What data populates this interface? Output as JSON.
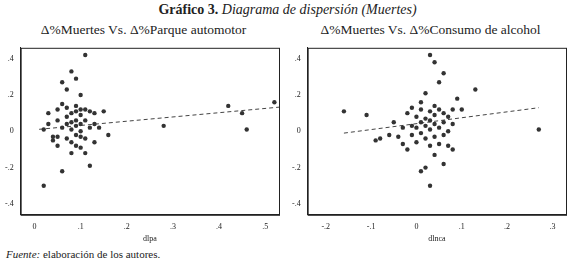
{
  "figure": {
    "label": "Gráfico 3.",
    "title": "Diagrama de dispersión (Muertes)"
  },
  "source": {
    "label": "Fuente:",
    "text": "elaboración de los autores."
  },
  "chart_data": [
    {
      "type": "scatter",
      "title": "Δ%Muertes Vs. Δ%Parque automotor",
      "x_label": "dlpa",
      "grid": false,
      "legend": "none",
      "xlim": [
        -0.03,
        0.53
      ],
      "xticks": [
        0,
        {
          "value": 0.1,
          "label": ".1"
        },
        {
          "value": 0.2,
          "label": ".2"
        },
        {
          "value": 0.3,
          "label": ".3"
        },
        {
          "value": 0.4,
          "label": ".4"
        },
        {
          "value": 0.5,
          "label": ".5"
        }
      ],
      "ylim": [
        -0.46,
        0.46
      ],
      "yticks": [
        {
          "value": -0.4,
          "label": "-.4"
        },
        {
          "value": -0.2,
          "label": "-.2"
        },
        0,
        {
          "value": 0.2,
          "label": ".2"
        },
        {
          "value": 0.4,
          "label": ".4"
        }
      ],
      "series": [
        {
          "type": "scatter",
          "marker": "circle",
          "color": "#333333",
          "x": [
            0.02,
            0.02,
            0.03,
            0.03,
            0.04,
            0.04,
            0.05,
            0.05,
            0.05,
            0.05,
            0.06,
            0.06,
            0.06,
            0.06,
            0.07,
            0.07,
            0.07,
            0.07,
            0.07,
            0.08,
            0.08,
            0.08,
            0.08,
            0.08,
            0.08,
            0.09,
            0.09,
            0.09,
            0.09,
            0.09,
            0.09,
            0.09,
            0.1,
            0.1,
            0.1,
            0.1,
            0.1,
            0.1,
            0.1,
            0.11,
            0.11,
            0.11,
            0.11,
            0.11,
            0.12,
            0.12,
            0.12,
            0.13,
            0.13,
            0.13,
            0.14,
            0.15,
            0.16,
            0.28,
            0.42,
            0.45,
            0.46,
            0.52
          ],
          "values": [
            -0.3,
            0.01,
            0.1,
            0.04,
            -0.03,
            -0.05,
            -0.08,
            -0.03,
            0.06,
            0.12,
            0.15,
            0.02,
            -0.22,
            0.27,
            0.13,
            0.08,
            0.04,
            -0.04,
            0.23,
            0.1,
            0.05,
            0.01,
            -0.06,
            -0.12,
            0.33,
            0.14,
            0.11,
            0.06,
            0.03,
            -0.02,
            -0.08,
            0.29,
            0.2,
            0.12,
            0.09,
            0.04,
            0.0,
            -0.03,
            -0.09,
            0.42,
            0.12,
            0.06,
            -0.04,
            -0.12,
            0.11,
            0.02,
            -0.19,
            0.1,
            0.04,
            -0.06,
            0.02,
            0.11,
            -0.02,
            0.03,
            0.14,
            0.1,
            0.01,
            0.16
          ]
        },
        {
          "type": "line",
          "line_style": "dashed",
          "color": "#444444",
          "x": [
            0.01,
            0.53
          ],
          "values": [
            0.011,
            0.133
          ]
        }
      ]
    },
    {
      "type": "scatter",
      "title": "Δ%Muertes Vs. Δ%Consumo de alcohol",
      "x_label": "dlnca",
      "grid": false,
      "legend": "none",
      "xlim": [
        -0.24,
        0.33
      ],
      "xticks": [
        {
          "value": -0.2,
          "label": "-.2"
        },
        {
          "value": -0.1,
          "label": "-.1"
        },
        0,
        {
          "value": 0.1,
          "label": ".1"
        },
        {
          "value": 0.2,
          "label": ".2"
        },
        {
          "value": 0.3,
          "label": ".3"
        }
      ],
      "ylim": [
        -0.46,
        0.46
      ],
      "yticks": [
        {
          "value": -0.4,
          "label": "-.4"
        },
        {
          "value": -0.2,
          "label": "-.2"
        },
        0,
        {
          "value": 0.2,
          "label": ".2"
        },
        {
          "value": 0.4,
          "label": ".4"
        }
      ],
      "series": [
        {
          "type": "scatter",
          "marker": "circle",
          "color": "#333333",
          "x": [
            -0.16,
            -0.11,
            -0.09,
            -0.08,
            -0.06,
            -0.05,
            -0.04,
            -0.03,
            -0.03,
            -0.02,
            -0.02,
            -0.01,
            -0.01,
            -0.01,
            0.0,
            0.0,
            0.0,
            0.01,
            0.01,
            0.01,
            0.01,
            0.01,
            0.02,
            0.02,
            0.02,
            0.02,
            0.02,
            0.03,
            0.03,
            0.03,
            0.03,
            0.03,
            0.03,
            0.04,
            0.04,
            0.04,
            0.04,
            0.04,
            0.04,
            0.05,
            0.05,
            0.05,
            0.05,
            0.06,
            0.06,
            0.06,
            0.06,
            0.06,
            0.07,
            0.07,
            0.07,
            0.08,
            0.08,
            0.08,
            0.09,
            0.1,
            0.13,
            0.27
          ],
          "values": [
            0.11,
            0.09,
            -0.05,
            -0.04,
            -0.02,
            0.05,
            -0.03,
            0.02,
            -0.07,
            0.1,
            -0.1,
            0.03,
            0.13,
            -0.02,
            0.08,
            -0.06,
            0.02,
            0.12,
            0.05,
            -0.01,
            0.16,
            -0.22,
            0.07,
            0.03,
            -0.04,
            -0.2,
            0.21,
            0.42,
            0.11,
            0.06,
            0.01,
            -0.08,
            -0.3,
            0.38,
            0.14,
            0.09,
            0.04,
            -0.03,
            -0.13,
            0.27,
            0.12,
            0.02,
            -0.07,
            0.32,
            0.1,
            0.05,
            -0.02,
            -0.18,
            0.08,
            0.0,
            -0.08,
            0.12,
            0.04,
            -0.1,
            0.18,
            0.12,
            0.23,
            0.01
          ]
        },
        {
          "type": "line",
          "line_style": "dashed",
          "color": "#444444",
          "x": [
            -0.16,
            0.27
          ],
          "values": [
            -0.01,
            0.13
          ]
        }
      ]
    }
  ]
}
